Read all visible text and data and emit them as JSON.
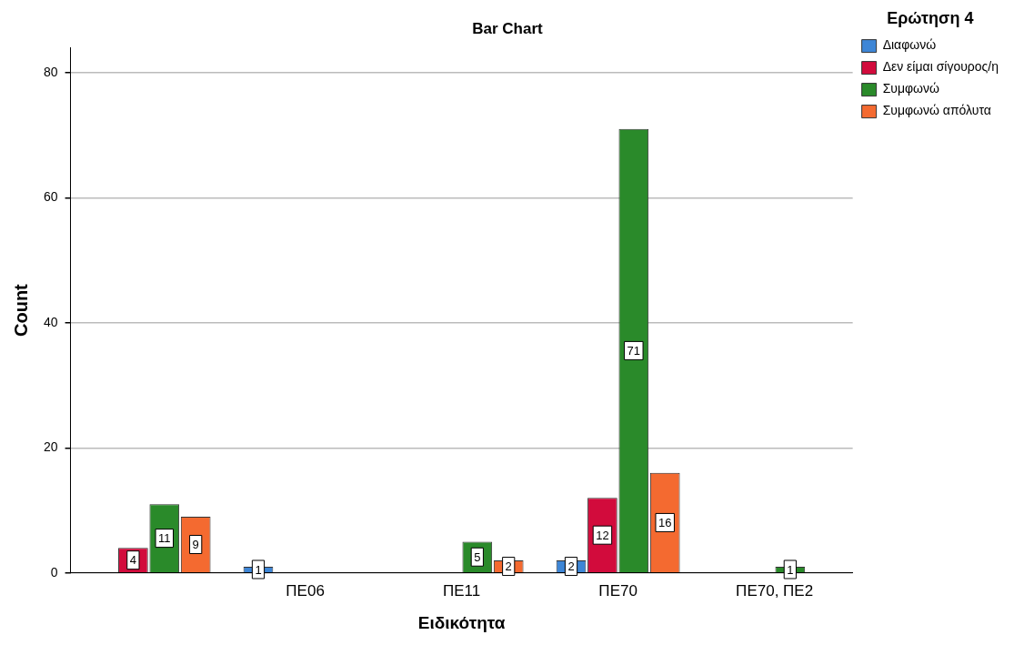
{
  "chart_data": {
    "type": "bar",
    "title": "Bar Chart",
    "xlabel": "Ειδικότητα",
    "ylabel": "Count",
    "legend_title": "Ερώτηση 4",
    "categories": [
      null,
      "ΠΕ06",
      "ΠΕ11",
      "ΠΕ70",
      "ΠΕ70, ΠΕ2"
    ],
    "series": [
      {
        "name": "Διαφωνώ",
        "color": "#3e86d6",
        "values": [
          null,
          1,
          null,
          2,
          null
        ]
      },
      {
        "name": "Δεν είμαι σίγουρος/η",
        "color": "#d20b3c",
        "values": [
          4,
          null,
          null,
          12,
          null
        ]
      },
      {
        "name": "Συμφωνώ",
        "color": "#2a8a2a",
        "values": [
          11,
          null,
          5,
          71,
          1
        ]
      },
      {
        "name": "Συμφωνώ απόλυτα",
        "color": "#f46a30",
        "values": [
          9,
          null,
          2,
          16,
          null
        ]
      }
    ],
    "ylim": [
      0,
      84
    ],
    "yticks": [
      0,
      20,
      40,
      60,
      80
    ],
    "grid": "y",
    "legend": "top right",
    "data_labels": true
  }
}
